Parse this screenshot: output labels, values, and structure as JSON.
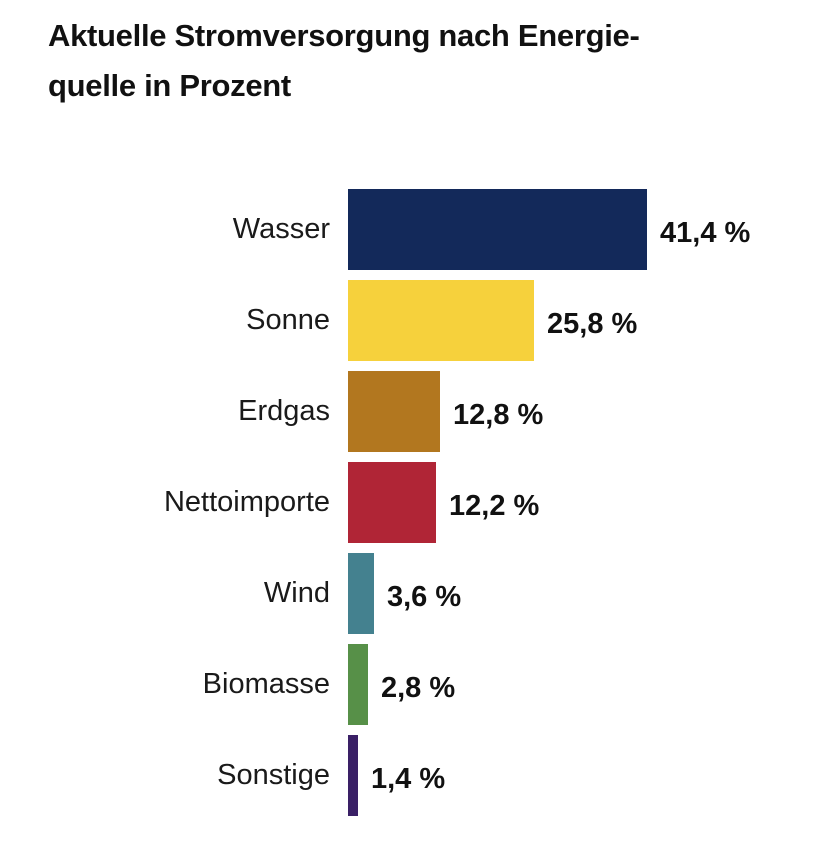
{
  "title_lines": [
    "Aktuelle Stromversorgung nach Energie-",
    "quelle in Prozent"
  ],
  "chart_data": {
    "type": "bar",
    "orientation": "horizontal",
    "title": "Aktuelle Stromversorgung nach Energiequelle in Prozent",
    "categories": [
      "Wasser",
      "Sonne",
      "Erdgas",
      "Nettoimporte",
      "Wind",
      "Biomasse",
      "Sonstige"
    ],
    "values": [
      41.4,
      25.8,
      12.8,
      12.2,
      3.6,
      2.8,
      1.4
    ],
    "value_labels": [
      "41,4 %",
      "25,8 %",
      "12,8 %",
      "12,2 %",
      "3,6 %",
      "2,8 %",
      "1,4 %"
    ],
    "bar_colors": [
      "#13295a",
      "#f6d13c",
      "#b2771f",
      "#b02536",
      "#44818f",
      "#579048",
      "#3a2066"
    ],
    "unit": "%",
    "xlim": [
      0,
      45
    ],
    "axis_visible": false,
    "grid": false,
    "legend": "none",
    "value_label_position": "right-of-bar",
    "category_label_position": "left-of-bar"
  },
  "colors": {
    "background": "#ffffff",
    "title_text": "#111111",
    "category_text": "#1a1a1a",
    "value_text": "#111111"
  }
}
